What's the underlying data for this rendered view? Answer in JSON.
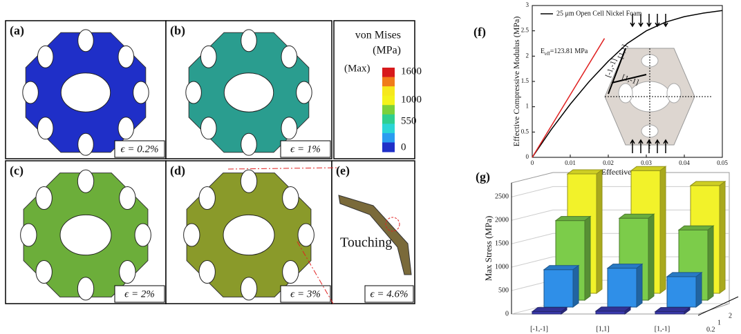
{
  "panels": [
    {
      "label": "(a)",
      "strain": "ϵ = 0.2%",
      "color": "#1f2fc8"
    },
    {
      "label": "(b)",
      "strain": "ϵ = 1%",
      "color": "#2a9d8f"
    },
    {
      "label": "(c)",
      "strain": "ϵ = 2%",
      "color": "#6cae3a"
    },
    {
      "label": "(d)",
      "strain": "ϵ = 3%",
      "color": "#8a9a2a"
    },
    {
      "label": "(e)",
      "strain": "ϵ = 4.6%",
      "note": "Touching",
      "color": "#7a6a3a"
    }
  ],
  "colorbar": {
    "title": [
      "von Mises",
      "(MPa)"
    ],
    "max_label": "(Max)",
    "ticks": [
      1600,
      1000,
      550,
      0
    ],
    "colors": [
      "#d7191c",
      "#f07c1a",
      "#f6e81c",
      "#f3f31a",
      "#7bd13a",
      "#2fcf8f",
      "#2bd6d6",
      "#2a9cf0",
      "#1f2fc8"
    ]
  },
  "chart_data": [
    {
      "type": "line",
      "label": "(f)",
      "xlabel": "Effective Strain",
      "ylabel": "Effective Compressive Modulus (MPa)",
      "xlim": [
        0,
        0.05
      ],
      "xticks": [
        0,
        0.01,
        0.02,
        0.03,
        0.04,
        0.05
      ],
      "ylim": [
        0,
        3
      ],
      "yticks": [
        0,
        0.5,
        1,
        1.5,
        2,
        2.5,
        3
      ],
      "series": [
        {
          "name": "25 μm Open Cell Nickel Foam",
          "color": "#000000",
          "x": [
            0,
            0.005,
            0.01,
            0.015,
            0.02,
            0.025,
            0.03,
            0.035,
            0.04,
            0.045,
            0.05
          ],
          "values": [
            0,
            0.55,
            1.05,
            1.5,
            1.9,
            2.25,
            2.5,
            2.67,
            2.78,
            2.85,
            2.9
          ]
        },
        {
          "color": "#e02020",
          "x": [
            0,
            0.019
          ],
          "values": [
            0,
            2.35
          ]
        }
      ],
      "annotation": {
        "base": "E",
        "sub": "eff",
        "rest": "=123.81 MPa"
      },
      "directions": [
        "[-1,-1]",
        "[1,1]",
        "[1,-1]"
      ]
    },
    {
      "type": "bar3d",
      "label": "(g)",
      "ylabel": "Max Stress (MPa)",
      "ylim": [
        0,
        2800
      ],
      "yticks": [
        0,
        500,
        1000,
        1500,
        2000,
        2500
      ],
      "categories": [
        "[-1,-1]",
        "[1,1]",
        "[1,-1]"
      ],
      "series": [
        {
          "name": "0.2",
          "color": "#3b3bb0",
          "values": [
            50,
            60,
            50
          ]
        },
        {
          "name": "1",
          "color": "#2f8fe8",
          "values": [
            800,
            830,
            650
          ]
        },
        {
          "name": "2",
          "color": "#7ccc4a",
          "values": [
            1700,
            1750,
            1500
          ]
        },
        {
          "color": "#f2f22a",
          "values": [
            2550,
            2620,
            2300
          ]
        }
      ]
    }
  ]
}
